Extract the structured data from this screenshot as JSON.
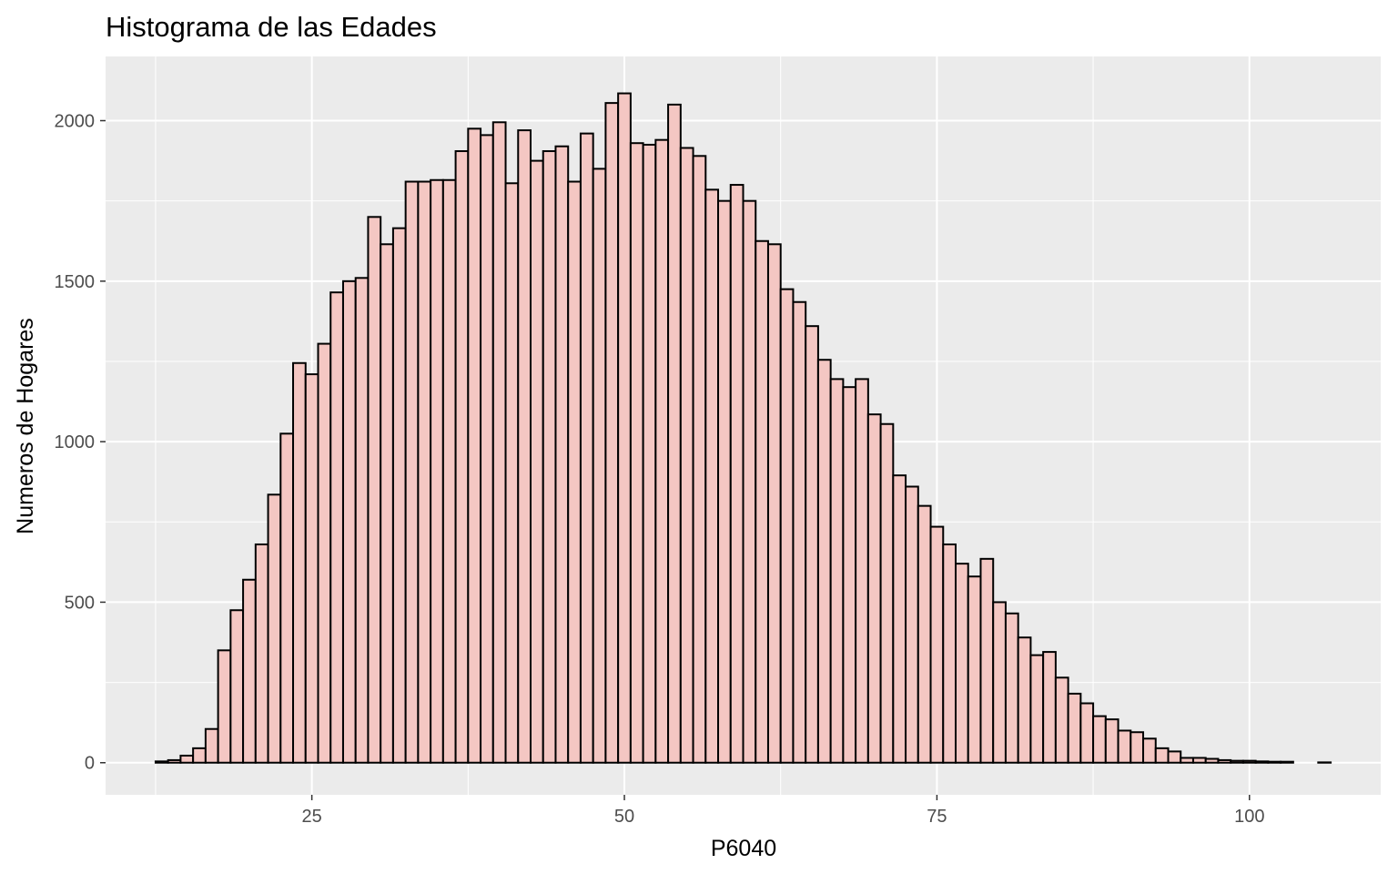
{
  "chart_data": {
    "type": "bar",
    "title": "Histograma de las Edades",
    "xlabel": "P6040",
    "ylabel": "Numeros de Hogares",
    "xlim": [
      8.5,
      110.5
    ],
    "ylim": [
      -100,
      2200
    ],
    "x_ticks": [
      25,
      50,
      75,
      100
    ],
    "y_ticks": [
      0,
      500,
      1000,
      1500,
      2000
    ],
    "grid": true,
    "legend": "none",
    "bin_width": 1,
    "x": [
      13,
      14,
      15,
      16,
      17,
      18,
      19,
      20,
      21,
      22,
      23,
      24,
      25,
      26,
      27,
      28,
      29,
      30,
      31,
      32,
      33,
      34,
      35,
      36,
      37,
      38,
      39,
      40,
      41,
      42,
      43,
      44,
      45,
      46,
      47,
      48,
      49,
      50,
      51,
      52,
      53,
      54,
      55,
      56,
      57,
      58,
      59,
      60,
      61,
      62,
      63,
      64,
      65,
      66,
      67,
      68,
      69,
      70,
      71,
      72,
      73,
      74,
      75,
      76,
      77,
      78,
      79,
      80,
      81,
      82,
      83,
      84,
      85,
      86,
      87,
      88,
      89,
      90,
      91,
      92,
      93,
      94,
      95,
      96,
      97,
      98,
      99,
      100,
      101,
      102,
      103,
      104,
      105,
      106
    ],
    "values": [
      4,
      8,
      22,
      45,
      105,
      350,
      475,
      570,
      680,
      835,
      1025,
      1245,
      1210,
      1305,
      1465,
      1500,
      1510,
      1700,
      1615,
      1665,
      1810,
      1810,
      1815,
      1815,
      1905,
      1975,
      1955,
      1995,
      1805,
      1970,
      1875,
      1905,
      1920,
      1810,
      1960,
      1850,
      2055,
      2085,
      1930,
      1925,
      1940,
      2050,
      1915,
      1890,
      1785,
      1750,
      1800,
      1750,
      1625,
      1615,
      1475,
      1435,
      1360,
      1255,
      1195,
      1170,
      1195,
      1085,
      1055,
      895,
      860,
      800,
      735,
      680,
      620,
      580,
      635,
      500,
      465,
      390,
      335,
      345,
      265,
      215,
      185,
      145,
      135,
      100,
      95,
      75,
      45,
      35,
      15,
      15,
      12,
      8,
      6,
      6,
      4,
      3,
      3,
      0,
      0,
      1
    ],
    "bar_fill": "#f4c7c3",
    "bar_stroke": "#000000",
    "panel_bg": "#ebebeb",
    "grid_color": "#ffffff"
  }
}
